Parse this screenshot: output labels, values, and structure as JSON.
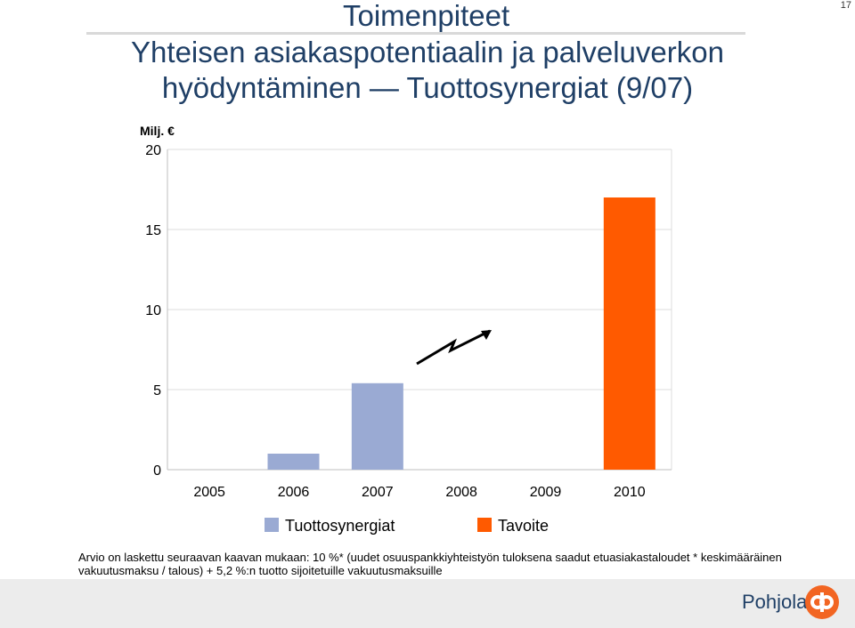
{
  "page": {
    "number": "17"
  },
  "title": {
    "line1": "Toimenpiteet",
    "line2": "Yhteisen asiakaspotentiaalin ja palveluverkon",
    "line3": "hyödyntäminen — Tuottosynergiat (9/07)"
  },
  "chart_data": {
    "type": "bar",
    "ylabel": "Milj. €",
    "categories": [
      "2005",
      "2006",
      "2007",
      "2008",
      "2009",
      "2010"
    ],
    "series": [
      {
        "name": "Tuottosynergiat",
        "color": "#9aaad3",
        "values": [
          0,
          1,
          5.4,
          0,
          0,
          0
        ]
      },
      {
        "name": "Tavoite",
        "color": "#ff5a00",
        "values": [
          0,
          0,
          0,
          0,
          0,
          17
        ]
      }
    ],
    "ylim": [
      0,
      20
    ],
    "yticks": [
      "0",
      "5",
      "10",
      "15",
      "20"
    ],
    "grid": true,
    "legend": "bottom",
    "annotation": "trend-arrow-2007-to-2009"
  },
  "footnote": {
    "line1": "Arvio on laskettu seuraavan kaavan mukaan: 10 %* (uudet osuuspankkiyhteistyön tuloksena saadut etuasiakastaloudet * keskimääräinen",
    "line2": "vakuutusmaksu / talous) + 5,2 %:n tuotto sijoitetuille vakuutusmaksuille"
  },
  "footer": {
    "brand": "Pohjola",
    "logo_icon": "pohjola-logo-icon",
    "logo_color": "#f26522"
  }
}
